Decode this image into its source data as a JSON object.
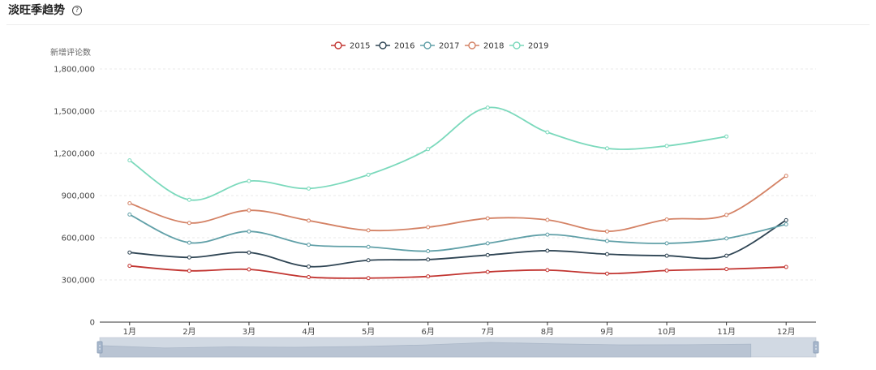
{
  "header": {
    "title": "淡旺季趋势",
    "help_icon": "help-circle-icon"
  },
  "chart_data": {
    "type": "line",
    "title": "",
    "xlabel": "",
    "ylabel": "新增评论数",
    "categories": [
      "1月",
      "2月",
      "3月",
      "4月",
      "5月",
      "6月",
      "7月",
      "8月",
      "9月",
      "10月",
      "11月",
      "12月"
    ],
    "ylim": [
      0,
      1800000
    ],
    "yticks": [
      "0",
      "300,000",
      "600,000",
      "900,000",
      "1,200,000",
      "1,500,000",
      "1,800,000"
    ],
    "legend_position": "top-center",
    "grid": true,
    "smooth": true,
    "has_data_zoom_slider": true,
    "series": [
      {
        "name": "2015",
        "color": "#c23531",
        "values": [
          400000,
          365000,
          375000,
          320000,
          313000,
          325000,
          357000,
          370000,
          345000,
          367000,
          377000,
          392000
        ]
      },
      {
        "name": "2016",
        "color": "#2f4554",
        "values": [
          495000,
          460000,
          495000,
          395000,
          440000,
          445000,
          477000,
          508000,
          483000,
          472000,
          472000,
          725000
        ]
      },
      {
        "name": "2017",
        "color": "#61a0a8",
        "values": [
          765000,
          565000,
          645000,
          550000,
          535000,
          505000,
          560000,
          622000,
          577000,
          560000,
          595000,
          695000
        ]
      },
      {
        "name": "2018",
        "color": "#d48265",
        "values": [
          845000,
          705000,
          795000,
          722000,
          653000,
          675000,
          738000,
          727000,
          645000,
          730000,
          762000,
          1040000
        ]
      },
      {
        "name": "2019",
        "color": "#7bd9bc",
        "values": [
          1150000,
          870000,
          1003000,
          950000,
          1048000,
          1230000,
          1525000,
          1350000,
          1235000,
          1253000,
          1320000,
          null
        ]
      }
    ]
  }
}
